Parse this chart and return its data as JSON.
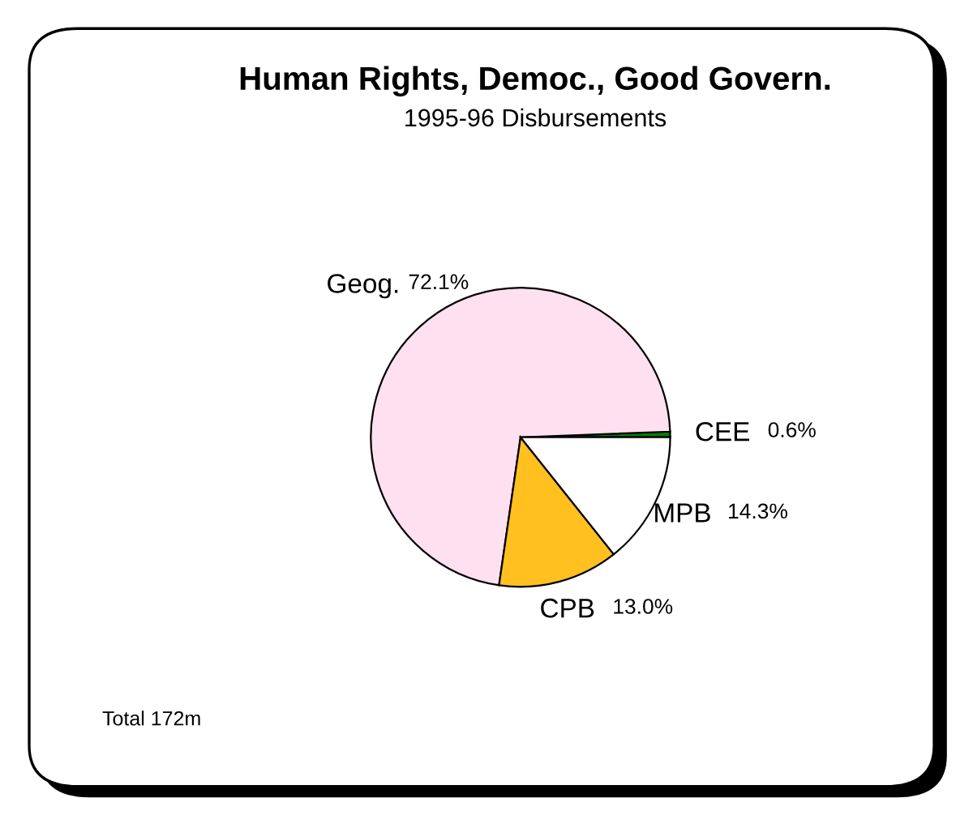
{
  "chart_data": {
    "type": "pie",
    "title": "Human Rights, Democ., Good Govern.",
    "subtitle": "1995-96 Disbursements",
    "categories": [
      "CEE",
      "Geog.",
      "CPB",
      "MPB"
    ],
    "values": [
      0.6,
      72.1,
      13.0,
      14.3
    ],
    "colors": [
      "#008000",
      "#ffe0f0",
      "#ffc020",
      "#ffffff"
    ],
    "value_labels": [
      "0.6%",
      "72.1%",
      "13.0%",
      "14.3%"
    ],
    "annotations": [
      "Total 172m"
    ]
  }
}
